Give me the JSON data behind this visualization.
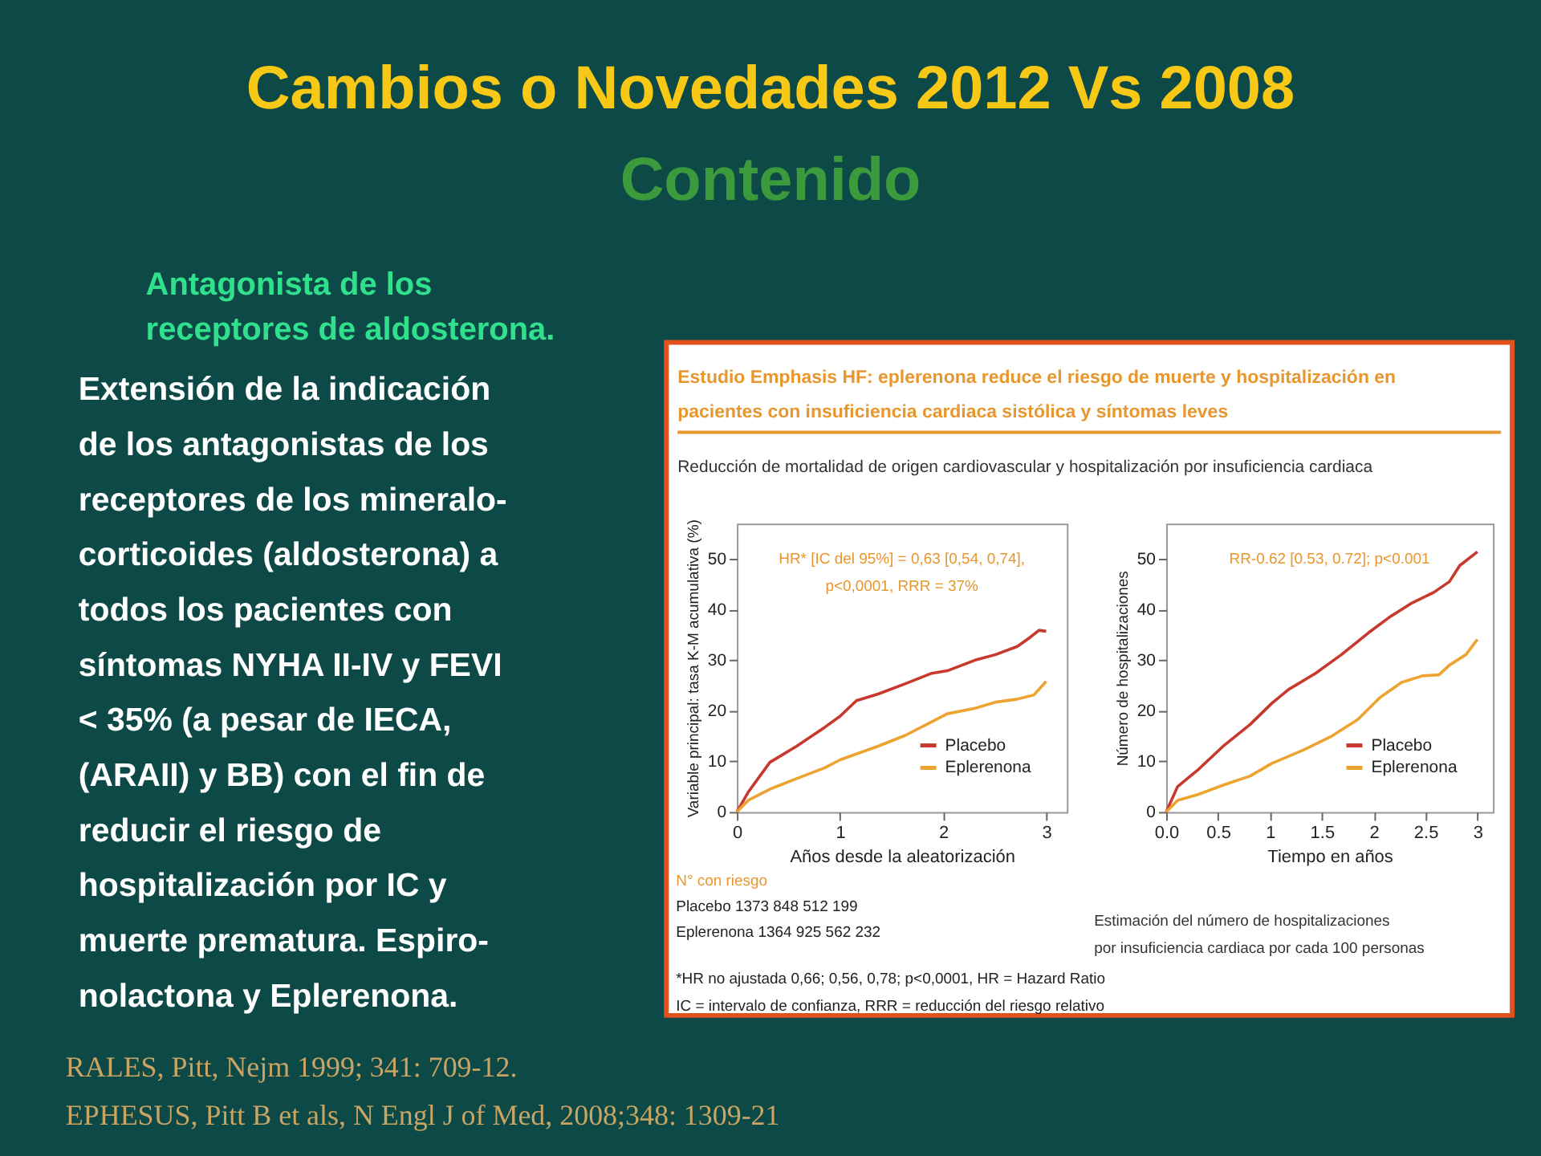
{
  "chart_data": [
    {
      "type": "other",
      "title": "Cambios o Novedades 2012 Vs 2008",
      "subtitle": "Contenido"
    },
    {
      "type": "other",
      "title": "Antagonista de los\nreceptores de aldosterona.",
      "annotations": [
        "Extensión de la indicación",
        "de los antagonistas de los",
        "receptores de los mineralo-",
        "corticoides (aldosterona) a",
        "todos los pacientes con",
        "síntomas NYHA II-IV y FEVI",
        "< 35% (a pesar de IECA,",
        "(ARAII) y BB) con el fin de",
        "reducir el riesgo de",
        "hospitalización por IC y",
        "muerte prematura. Espiro-",
        "nolactona y Eplerenona."
      ]
    },
    {
      "type": "line",
      "title": "Estudio Emphasis HF: eplerenona reduce el riesgo de muerte y hospitalización en\npacientes con insuficiencia cardiaca sistólica y síntomas leves",
      "subtitle": "Reducción de mortalidad de origen cardiovascular y hospitalización por insuficiencia cardiaca",
      "xlabel": "Años desde la aleatorización",
      "ylabel": "Variable principal: tasa K-M acumulativa (%)",
      "xlim": [
        0,
        3.2
      ],
      "ylim": [
        0,
        57
      ],
      "xticks": [
        0,
        1,
        2,
        3
      ],
      "yticks": [
        0,
        10,
        20,
        30,
        40,
        50
      ],
      "grid": false,
      "legend": "bottom right",
      "annotations": [
        "HR* [IC del 95%] = 0,63 [0,54, 0,74],\np<0,0001, RRR = 37%",
        "N° con riesgo",
        "Placebo 1373 848 512 199",
        "Eplerenona 1364 925 562 232",
        "*HR no ajustada 0,66; 0,56, 0,78; p<0,0001, HR = Hazard Ratio\nIC = intervalo de confianza, RRR = reducción del riesgo relativo"
      ],
      "series": [
        {
          "name": "Placebo",
          "color": "#c8382c",
          "x": [
            0,
            0.11,
            0.32,
            0.58,
            0.85,
            1.0,
            1.16,
            1.37,
            1.63,
            1.89,
            2.04,
            2.31,
            2.51,
            2.72,
            2.83,
            2.93,
            3.0
          ],
          "values": [
            0,
            3.9,
            9.8,
            13,
            16.7,
            18.9,
            22,
            23.3,
            25.3,
            27.4,
            27.9,
            30,
            31.1,
            32.7,
            34.3,
            35.9,
            35.7
          ]
        },
        {
          "name": "Eplerenona",
          "color": "#eda32f",
          "x": [
            0,
            0.11,
            0.32,
            0.58,
            0.85,
            1.0,
            1.37,
            1.63,
            1.89,
            2.04,
            2.31,
            2.51,
            2.72,
            2.88,
            3.0
          ],
          "values": [
            0,
            2.3,
            4.5,
            6.6,
            8.7,
            10.3,
            13,
            15.1,
            17.8,
            19.4,
            20.5,
            21.7,
            22.3,
            23.1,
            25.8
          ]
        }
      ]
    },
    {
      "type": "line",
      "xlabel": "Tiempo en años",
      "ylabel": "Número de hospitalizaciones",
      "xlim": [
        0,
        3.15
      ],
      "ylim": [
        0,
        57
      ],
      "xticks": [
        {
          "value": 0,
          "label": "0.0"
        },
        0.5,
        1,
        1.5,
        2,
        2.5,
        3
      ],
      "yticks": [
        0,
        10,
        20,
        30,
        40,
        50
      ],
      "grid": false,
      "legend": "bottom right",
      "annotations": [
        "RR-0.62 [0.53, 0.72]; p<0.001",
        "Estimación del número de hospitalizaciones\npor insuficiencia cardiaca por cada 100 personas"
      ],
      "series": [
        {
          "name": "Placebo",
          "color": "#c8382c",
          "x": [
            0,
            0.11,
            0.3,
            0.55,
            0.81,
            1.02,
            1.18,
            1.44,
            1.69,
            1.95,
            2.16,
            2.37,
            2.58,
            2.73,
            2.83,
            3.0
          ],
          "values": [
            0,
            5,
            8.2,
            13,
            17.3,
            21.5,
            24.2,
            27.4,
            31.1,
            35.4,
            38.6,
            41.3,
            43.4,
            45.5,
            48.7,
            51.4
          ]
        },
        {
          "name": "Eplerenona",
          "color": "#eda32f",
          "x": [
            0,
            0.11,
            0.3,
            0.55,
            0.81,
            1.02,
            1.33,
            1.59,
            1.85,
            2.06,
            2.27,
            2.47,
            2.63,
            2.73,
            2.89,
            3.0
          ],
          "values": [
            0,
            2.3,
            3.4,
            5.3,
            7.1,
            9.6,
            12.3,
            14.9,
            18.3,
            22.6,
            25.6,
            26.9,
            27.1,
            29,
            31.1,
            34.1
          ]
        }
      ]
    },
    {
      "type": "other",
      "annotations": [
        "RALES, Pitt, Nejm 1999; 341: 709-12.",
        "EPHESUS, Pitt B et als, N Engl J of Med, 2008;348: 1309-21"
      ]
    }
  ]
}
